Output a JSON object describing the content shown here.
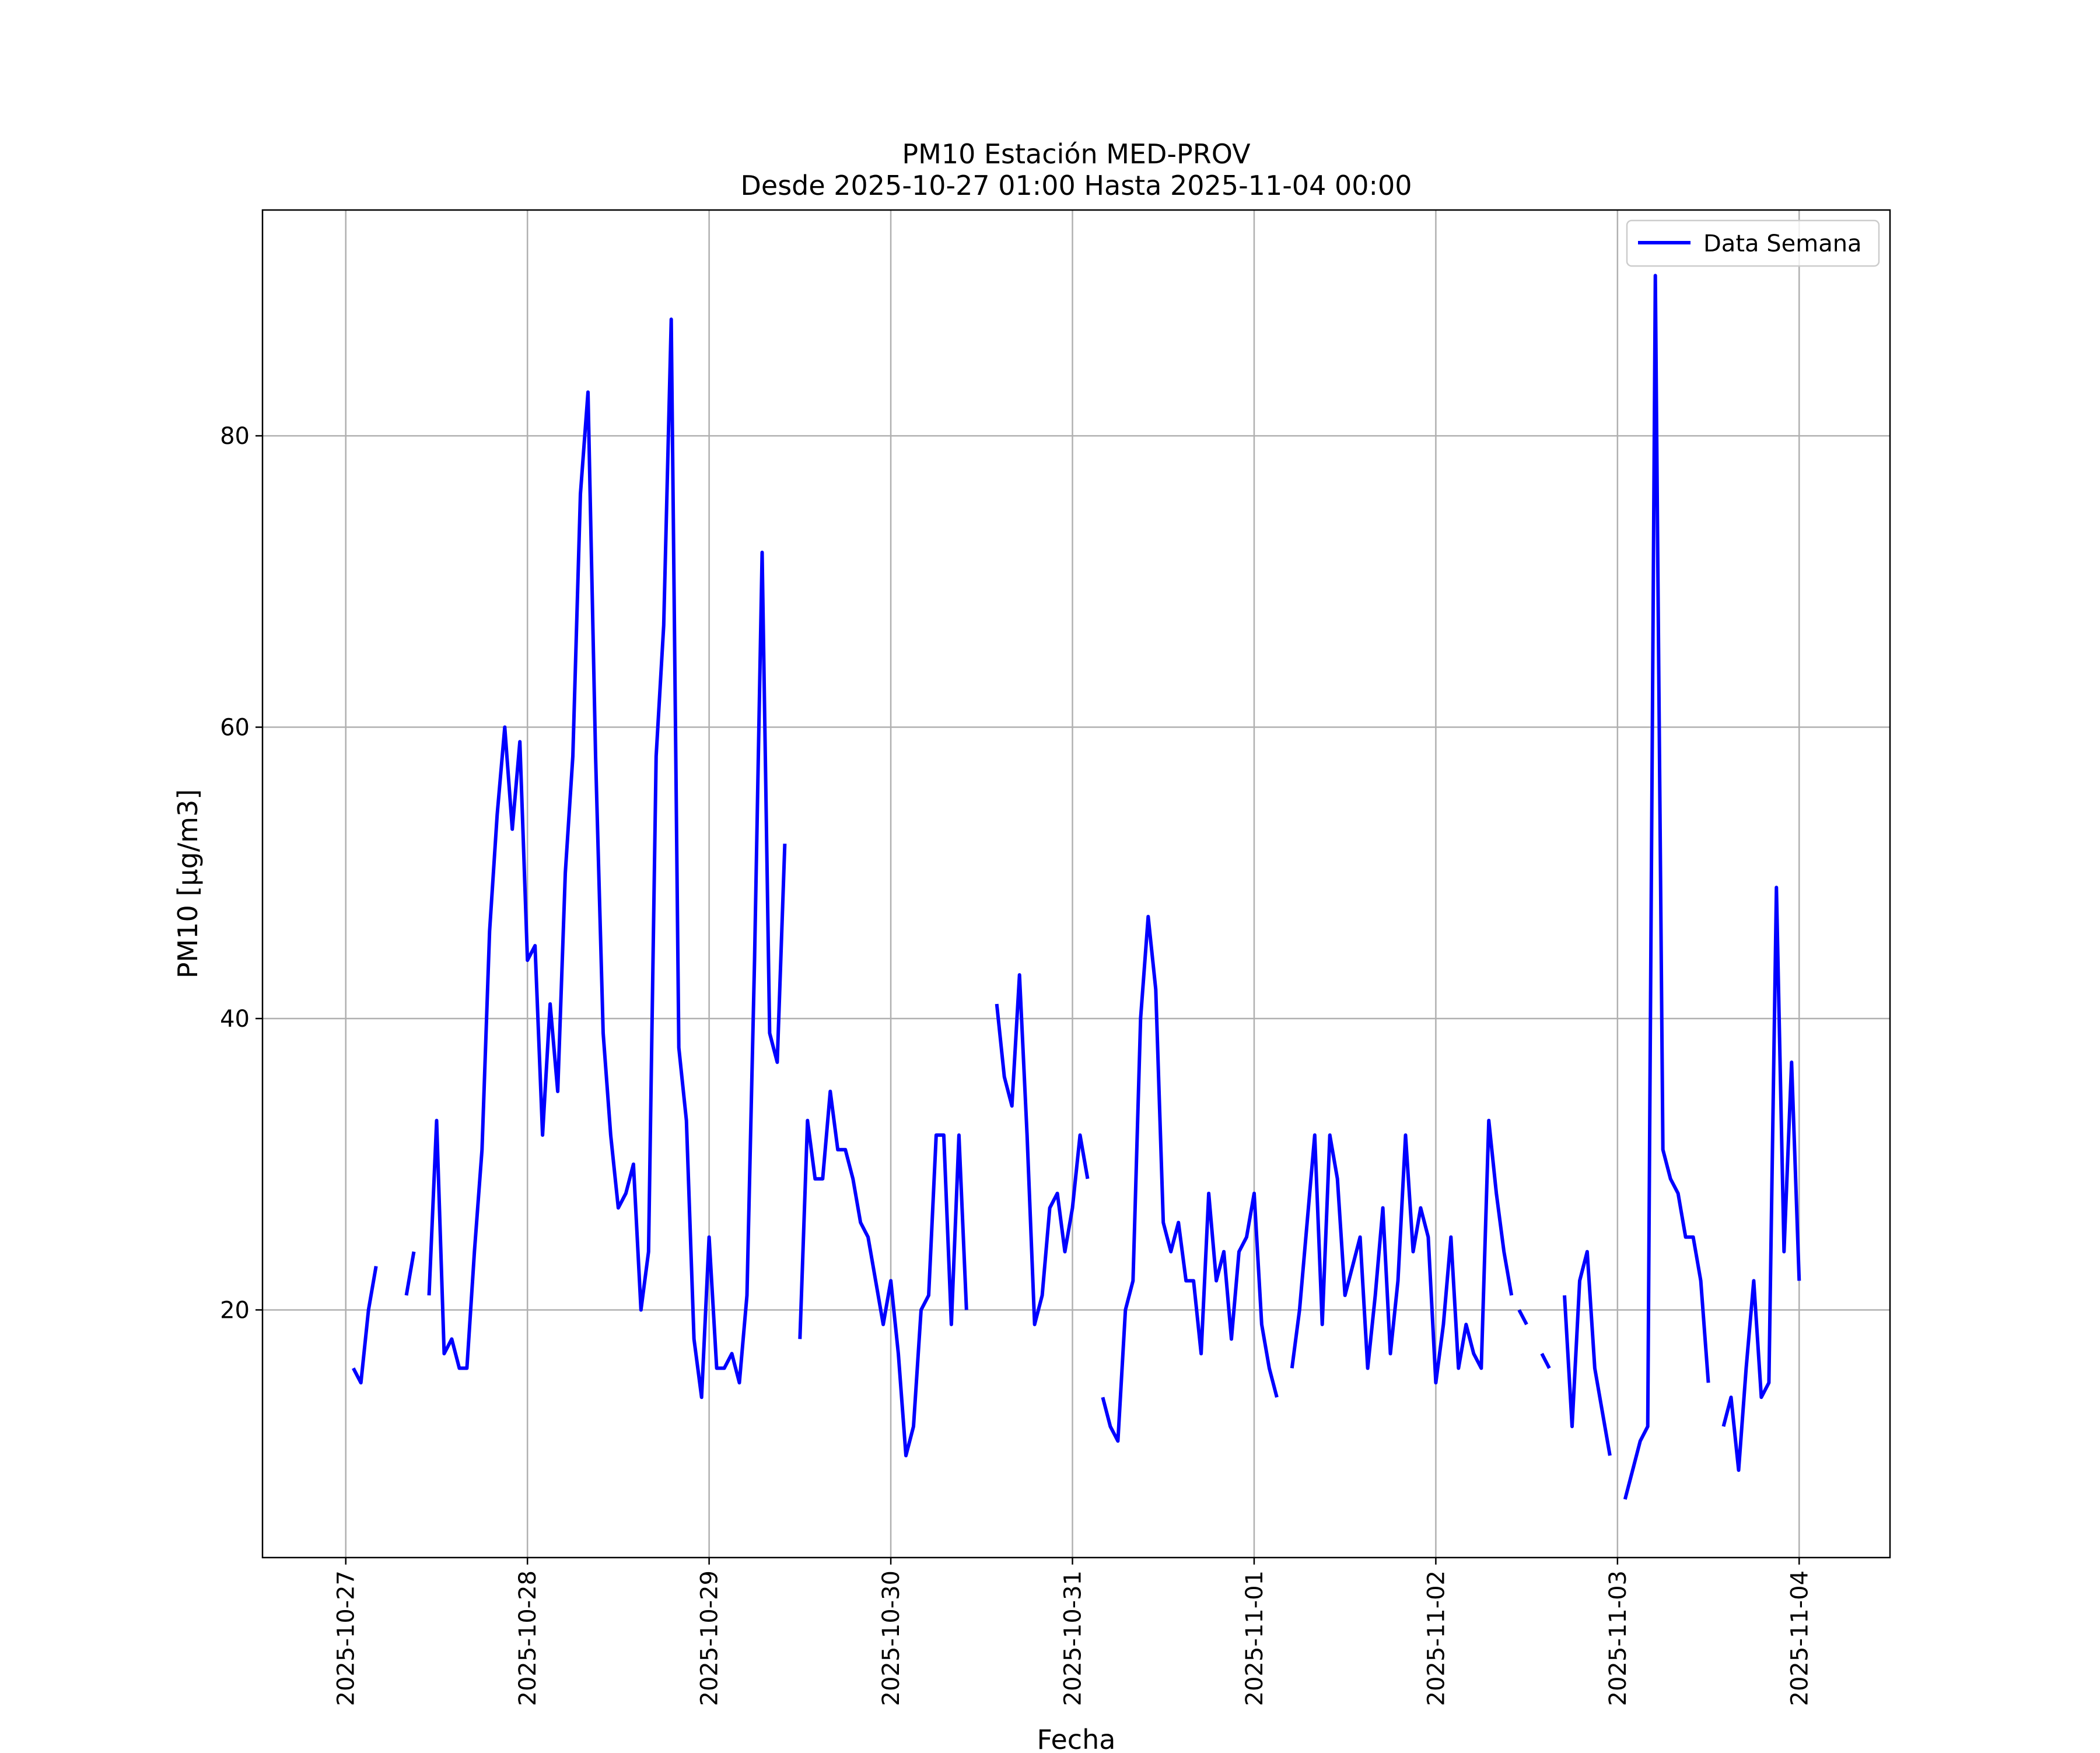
{
  "chart_data": {
    "type": "line",
    "title": "PM10 Estación MED-PROV",
    "subtitle": "Desde 2025-10-27 01:00 Hasta 2025-11-04 00:00",
    "xlabel": "Fecha",
    "ylabel": "PM10 [μg/m3]",
    "x_tick_labels": [
      "2025-10-27",
      "2025-10-28",
      "2025-10-29",
      "2025-10-30",
      "2025-10-31",
      "2025-11-01",
      "2025-11-02",
      "2025-11-03",
      "2025-11-04"
    ],
    "y_ticks": [
      20,
      40,
      60,
      80
    ],
    "xlim": [
      "2025-10-26 13:00",
      "2025-11-04 12:00"
    ],
    "ylim": [
      3,
      95.5
    ],
    "grid": true,
    "legend_position": "upper-right",
    "colors": {
      "line": "#0000ff",
      "grid": "#b0b0b0",
      "axes": "#000000"
    },
    "series": [
      {
        "name": "Data Semana",
        "segments": [
          [
            [
              "2025-10-27 01:00",
              16
            ],
            [
              "2025-10-27 02:00",
              15
            ],
            [
              "2025-10-27 03:00",
              20
            ],
            [
              "2025-10-27 04:00",
              23
            ]
          ],
          [
            [
              "2025-10-27 08:00",
              21
            ],
            [
              "2025-10-27 09:00",
              24
            ]
          ],
          [
            [
              "2025-10-27 11:00",
              21
            ],
            [
              "2025-10-27 12:00",
              33
            ],
            [
              "2025-10-27 13:00",
              17
            ],
            [
              "2025-10-27 14:00",
              18
            ],
            [
              "2025-10-27 15:00",
              16
            ],
            [
              "2025-10-27 16:00",
              16
            ],
            [
              "2025-10-27 17:00",
              24
            ],
            [
              "2025-10-27 18:00",
              31
            ],
            [
              "2025-10-27 19:00",
              46
            ],
            [
              "2025-10-27 20:00",
              54
            ],
            [
              "2025-10-27 21:00",
              60
            ],
            [
              "2025-10-27 22:00",
              53
            ],
            [
              "2025-10-27 23:00",
              59
            ],
            [
              "2025-10-28 00:00",
              44
            ],
            [
              "2025-10-28 01:00",
              45
            ],
            [
              "2025-10-28 02:00",
              32
            ],
            [
              "2025-10-28 03:00",
              41
            ],
            [
              "2025-10-28 04:00",
              35
            ],
            [
              "2025-10-28 05:00",
              50
            ],
            [
              "2025-10-28 06:00",
              58
            ],
            [
              "2025-10-28 07:00",
              76
            ],
            [
              "2025-10-28 08:00",
              83
            ],
            [
              "2025-10-28 09:00",
              58
            ],
            [
              "2025-10-28 10:00",
              39
            ],
            [
              "2025-10-28 11:00",
              32
            ],
            [
              "2025-10-28 12:00",
              27
            ],
            [
              "2025-10-28 13:00",
              28
            ],
            [
              "2025-10-28 14:00",
              30
            ],
            [
              "2025-10-28 15:00",
              20
            ],
            [
              "2025-10-28 16:00",
              24
            ],
            [
              "2025-10-28 17:00",
              58
            ],
            [
              "2025-10-28 18:00",
              67
            ],
            [
              "2025-10-28 19:00",
              88
            ],
            [
              "2025-10-28 20:00",
              38
            ],
            [
              "2025-10-28 21:00",
              33
            ],
            [
              "2025-10-28 22:00",
              18
            ],
            [
              "2025-10-28 23:00",
              14
            ],
            [
              "2025-10-29 00:00",
              25
            ],
            [
              "2025-10-29 01:00",
              16
            ],
            [
              "2025-10-29 02:00",
              16
            ],
            [
              "2025-10-29 03:00",
              17
            ],
            [
              "2025-10-29 04:00",
              15
            ],
            [
              "2025-10-29 05:00",
              21
            ],
            [
              "2025-10-29 06:00",
              44
            ],
            [
              "2025-10-29 07:00",
              72
            ],
            [
              "2025-10-29 08:00",
              39
            ],
            [
              "2025-10-29 09:00",
              37
            ],
            [
              "2025-10-29 10:00",
              52
            ]
          ],
          [
            [
              "2025-10-29 12:00",
              18
            ],
            [
              "2025-10-29 13:00",
              33
            ],
            [
              "2025-10-29 14:00",
              29
            ],
            [
              "2025-10-29 15:00",
              29
            ],
            [
              "2025-10-29 16:00",
              35
            ],
            [
              "2025-10-29 17:00",
              31
            ],
            [
              "2025-10-29 18:00",
              31
            ],
            [
              "2025-10-29 19:00",
              29
            ],
            [
              "2025-10-29 20:00",
              26
            ],
            [
              "2025-10-29 21:00",
              25
            ],
            [
              "2025-10-29 22:00",
              22
            ],
            [
              "2025-10-29 23:00",
              19
            ],
            [
              "2025-10-30 00:00",
              22
            ],
            [
              "2025-10-30 01:00",
              17
            ],
            [
              "2025-10-30 02:00",
              10
            ],
            [
              "2025-10-30 03:00",
              12
            ],
            [
              "2025-10-30 04:00",
              20
            ],
            [
              "2025-10-30 05:00",
              21
            ],
            [
              "2025-10-30 06:00",
              32
            ],
            [
              "2025-10-30 07:00",
              32
            ],
            [
              "2025-10-30 08:00",
              19
            ],
            [
              "2025-10-30 09:00",
              32
            ],
            [
              "2025-10-30 10:00",
              20
            ]
          ],
          [
            [
              "2025-10-30 14:00",
              41
            ],
            [
              "2025-10-30 15:00",
              36
            ],
            [
              "2025-10-30 16:00",
              34
            ],
            [
              "2025-10-30 17:00",
              43
            ],
            [
              "2025-10-30 18:00",
              32
            ],
            [
              "2025-10-30 19:00",
              19
            ],
            [
              "2025-10-30 20:00",
              21
            ],
            [
              "2025-10-30 21:00",
              27
            ],
            [
              "2025-10-30 22:00",
              28
            ],
            [
              "2025-10-30 23:00",
              24
            ],
            [
              "2025-10-31 00:00",
              27
            ],
            [
              "2025-10-31 01:00",
              32
            ],
            [
              "2025-10-31 02:00",
              29
            ]
          ],
          [
            [
              "2025-10-31 04:00",
              14
            ],
            [
              "2025-10-31 05:00",
              12
            ],
            [
              "2025-10-31 06:00",
              11
            ],
            [
              "2025-10-31 07:00",
              20
            ],
            [
              "2025-10-31 08:00",
              22
            ],
            [
              "2025-10-31 09:00",
              40
            ],
            [
              "2025-10-31 10:00",
              47
            ],
            [
              "2025-10-31 11:00",
              42
            ],
            [
              "2025-10-31 12:00",
              26
            ],
            [
              "2025-10-31 13:00",
              24
            ],
            [
              "2025-10-31 14:00",
              26
            ],
            [
              "2025-10-31 15:00",
              22
            ],
            [
              "2025-10-31 16:00",
              22
            ],
            [
              "2025-10-31 17:00",
              17
            ],
            [
              "2025-10-31 18:00",
              28
            ],
            [
              "2025-10-31 19:00",
              22
            ],
            [
              "2025-10-31 20:00",
              24
            ],
            [
              "2025-10-31 21:00",
              18
            ],
            [
              "2025-10-31 22:00",
              24
            ],
            [
              "2025-10-31 23:00",
              25
            ],
            [
              "2025-11-01 00:00",
              28
            ],
            [
              "2025-11-01 01:00",
              19
            ],
            [
              "2025-11-01 02:00",
              16
            ],
            [
              "2025-11-01 03:00",
              14
            ]
          ],
          [
            [
              "2025-11-01 05:00",
              16
            ],
            [
              "2025-11-01 06:00",
              20
            ],
            [
              "2025-11-01 07:00",
              26
            ],
            [
              "2025-11-01 08:00",
              32
            ],
            [
              "2025-11-01 09:00",
              19
            ],
            [
              "2025-11-01 10:00",
              32
            ],
            [
              "2025-11-01 11:00",
              29
            ],
            [
              "2025-11-01 12:00",
              21
            ],
            [
              "2025-11-01 13:00",
              23
            ],
            [
              "2025-11-01 14:00",
              25
            ],
            [
              "2025-11-01 15:00",
              16
            ],
            [
              "2025-11-01 16:00",
              21
            ],
            [
              "2025-11-01 17:00",
              27
            ],
            [
              "2025-11-01 18:00",
              17
            ],
            [
              "2025-11-01 19:00",
              22
            ],
            [
              "2025-11-01 20:00",
              32
            ],
            [
              "2025-11-01 21:00",
              24
            ],
            [
              "2025-11-01 22:00",
              27
            ],
            [
              "2025-11-01 23:00",
              25
            ],
            [
              "2025-11-02 00:00",
              15
            ],
            [
              "2025-11-02 01:00",
              19
            ],
            [
              "2025-11-02 02:00",
              25
            ],
            [
              "2025-11-02 03:00",
              16
            ],
            [
              "2025-11-02 04:00",
              19
            ],
            [
              "2025-11-02 05:00",
              17
            ],
            [
              "2025-11-02 06:00",
              16
            ],
            [
              "2025-11-02 07:00",
              33
            ],
            [
              "2025-11-02 08:00",
              28
            ],
            [
              "2025-11-02 09:00",
              24
            ],
            [
              "2025-11-02 10:00",
              21
            ]
          ],
          [
            [
              "2025-11-02 11:00",
              20
            ],
            [
              "2025-11-02 12:00",
              19
            ]
          ],
          [
            [
              "2025-11-02 14:00",
              17
            ],
            [
              "2025-11-02 15:00",
              16
            ]
          ],
          [
            [
              "2025-11-02 17:00",
              21
            ],
            [
              "2025-11-02 18:00",
              12
            ],
            [
              "2025-11-02 19:00",
              22
            ],
            [
              "2025-11-02 20:00",
              24
            ],
            [
              "2025-11-02 21:00",
              16
            ],
            [
              "2025-11-02 22:00",
              13
            ],
            [
              "2025-11-02 23:00",
              10
            ]
          ],
          [
            [
              "2025-11-03 01:00",
              7
            ],
            [
              "2025-11-03 02:00",
              9
            ],
            [
              "2025-11-03 03:00",
              11
            ],
            [
              "2025-11-03 04:00",
              12
            ],
            [
              "2025-11-03 05:00",
              91
            ],
            [
              "2025-11-03 06:00",
              31
            ],
            [
              "2025-11-03 07:00",
              29
            ],
            [
              "2025-11-03 08:00",
              28
            ],
            [
              "2025-11-03 09:00",
              25
            ],
            [
              "2025-11-03 10:00",
              25
            ],
            [
              "2025-11-03 11:00",
              22
            ],
            [
              "2025-11-03 12:00",
              15
            ]
          ],
          [
            [
              "2025-11-03 14:00",
              12
            ],
            [
              "2025-11-03 15:00",
              14
            ],
            [
              "2025-11-03 16:00",
              9
            ],
            [
              "2025-11-03 17:00",
              16
            ],
            [
              "2025-11-03 18:00",
              22
            ],
            [
              "2025-11-03 19:00",
              14
            ],
            [
              "2025-11-03 20:00",
              15
            ],
            [
              "2025-11-03 21:00",
              49
            ],
            [
              "2025-11-03 22:00",
              24
            ],
            [
              "2025-11-03 23:00",
              37
            ],
            [
              "2025-11-04 00:00",
              22
            ]
          ]
        ]
      }
    ]
  }
}
